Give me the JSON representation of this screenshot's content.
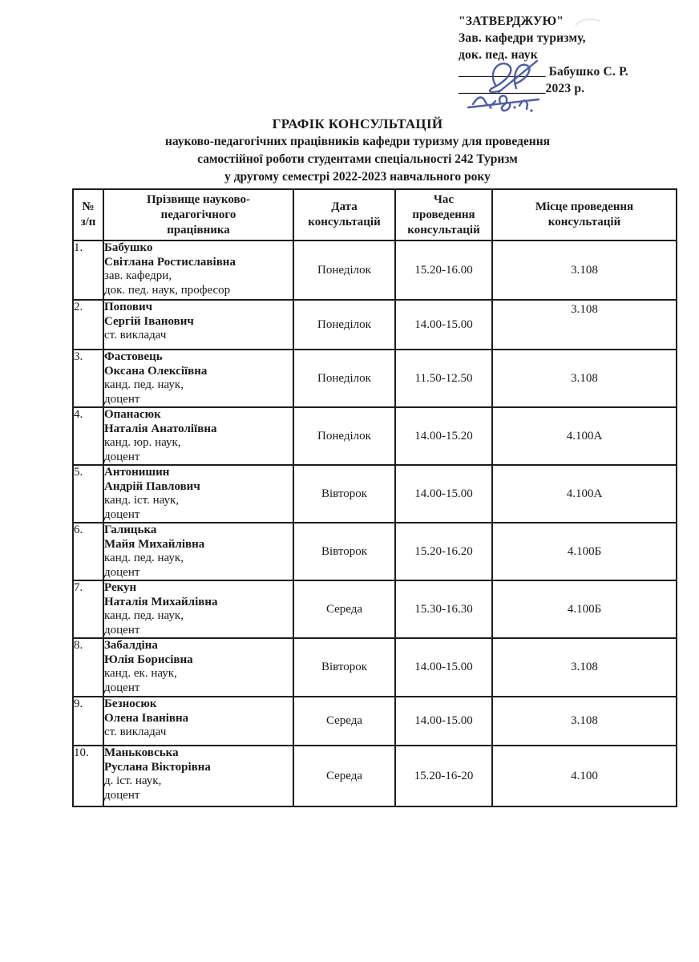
{
  "approval": {
    "quote": "\"ЗАТВЕРДЖУЮ\"",
    "line2": "Зав. кафедри туризму,",
    "line3": "док. пед. наук",
    "sig_underscores_1": "______________",
    "name": " Бабушко С. Р.",
    "sig_underscores_2": "______________",
    "year": "2023 р."
  },
  "title": {
    "line1": "ГРАФІК КОНСУЛЬТАЦІЙ",
    "line2": "науково-педагогічних працівників кафедри туризму для проведення",
    "line3": "самостійної роботи  студентами спеціальності 242 Туризм",
    "line4": "у другому семестрі 2022-2023 навчального року"
  },
  "table": {
    "headers": {
      "num": "№\nз/п",
      "name": "Прізвище науково-\nпедагогічного\nпрацівника",
      "date": "Дата\nконсультацій",
      "time": "Час\nпроведення\nконсультацій",
      "place": "Місце проведення\nконсультацій"
    },
    "rows": [
      {
        "num": "1.",
        "bold": [
          "Бабушко",
          "Світлана Ростиславівна"
        ],
        "normal": [
          "зав. кафедри,",
          "док. пед. наук, професор"
        ],
        "day": "Понеділок",
        "time": "15.20-16.00",
        "place": "3.108",
        "place_top": false
      },
      {
        "num": "2.",
        "bold": [
          "Попович",
          "Сергій Іванович"
        ],
        "normal": [
          "ст. викладач"
        ],
        "day": "Понеділок",
        "time": "14.00-15.00",
        "place": "3.108",
        "place_top": true
      },
      {
        "num": "3.",
        "bold": [
          "Фастовець",
          "Оксана Олексіївна"
        ],
        "normal": [
          "канд. пед. наук,",
          "доцент"
        ],
        "day": "Понеділок",
        "time": "11.50-12.50",
        "place": "3.108",
        "place_top": false
      },
      {
        "num": "4.",
        "bold": [
          "Опанасюк",
          "Наталія Анатоліївна"
        ],
        "normal": [
          "канд. юр. наук,",
          "доцент"
        ],
        "day": "Понеділок",
        "time": "14.00-15.20",
        "place": "4.100А",
        "place_top": false
      },
      {
        "num": "5.",
        "bold": [
          "Антонишин",
          "Андрій Павлович"
        ],
        "normal": [
          "канд. іст. наук,",
          "доцент"
        ],
        "day": "Вівторок",
        "time": "14.00-15.00",
        "place": "4.100А",
        "place_top": false
      },
      {
        "num": "6.",
        "bold": [
          "Галицька",
          "Майя Михайлівна"
        ],
        "normal": [
          "канд. пед. наук,",
          "доцент"
        ],
        "day": "Вівторок",
        "time": "15.20-16.20",
        "place": "4.100Б",
        "place_top": false
      },
      {
        "num": "7.",
        "bold": [
          "Рекун",
          "Наталія Михайлівна"
        ],
        "normal": [
          "канд. пед. наук,",
          "доцент"
        ],
        "day": "Середа",
        "time": "15.30-16.30",
        "place": "4.100Б",
        "place_top": false
      },
      {
        "num": "8.",
        "bold": [
          "Забалдіна",
          "Юлія Борисівна"
        ],
        "normal": [
          "канд. ек. наук,",
          "доцент"
        ],
        "day": "Вівторок",
        "time": "14.00-15.00",
        "place": "3.108",
        "place_top": false
      },
      {
        "num": "9.",
        "bold": [
          "Безносюк",
          "Олена Іванівна"
        ],
        "normal": [
          "ст. викладач"
        ],
        "day": "Середа",
        "time": "14.00-15.00",
        "place": "3.108",
        "place_top": false
      },
      {
        "num": "10.",
        "bold": [
          "Маньковська",
          "Руслана Вікторівна"
        ],
        "normal": [
          "д. іст. наук,",
          "доцент"
        ],
        "day": "Середа",
        "time": "15.20-16-20",
        "place": "4.100",
        "place_top": false
      }
    ]
  },
  "colors": {
    "ink": "#1a1a1a",
    "signature_blue": "#3c50a5"
  }
}
